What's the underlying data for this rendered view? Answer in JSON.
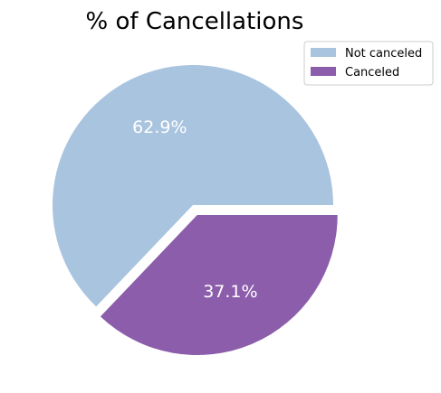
{
  "chart_data": {
    "type": "pie",
    "title": "% of Cancellations",
    "labels": [
      "Not canceled",
      "Canceled"
    ],
    "values": [
      62.9,
      37.1
    ],
    "value_labels": [
      "62.9%",
      "37.1%"
    ],
    "colors": [
      "#a9c4df",
      "#8c5dab"
    ],
    "exploded": [
      false,
      true
    ],
    "legend_position": "top-right"
  }
}
